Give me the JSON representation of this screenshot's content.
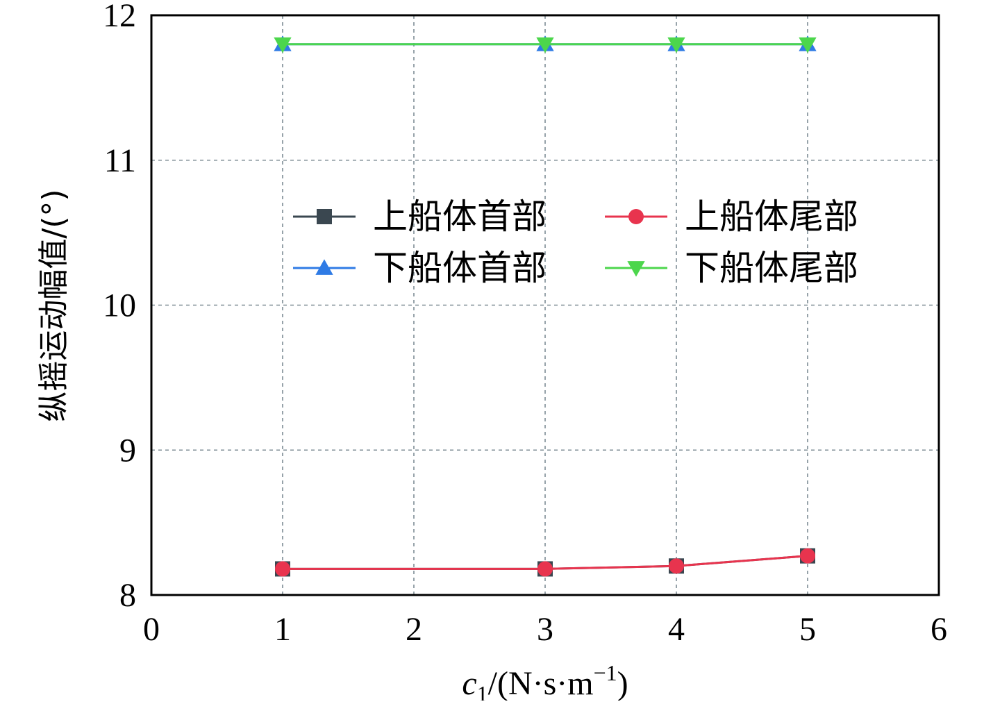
{
  "chart_data": {
    "type": "line",
    "xlabel": {
      "var": "c",
      "sub": "1",
      "unit_pre": "/(N·s·m",
      "sup": "−1",
      "unit_post": ")"
    },
    "ylabel": "纵摇运动幅值/(°)",
    "xlim": [
      0,
      6
    ],
    "ylim": [
      8,
      12
    ],
    "xticks": [
      "0",
      "1",
      "2",
      "3",
      "4",
      "5",
      "6"
    ],
    "yticks": [
      "8",
      "9",
      "10",
      "11",
      "12"
    ],
    "grid": true,
    "legend_position": "upper-center",
    "x": [
      1,
      3,
      4,
      5
    ],
    "series": [
      {
        "name": "上船体首部",
        "color": "#3a4750",
        "marker": "square",
        "values": [
          8.18,
          8.18,
          8.2,
          8.27
        ]
      },
      {
        "name": "上船体尾部",
        "color": "#e8344e",
        "marker": "circle",
        "values": [
          8.18,
          8.18,
          8.2,
          8.27
        ]
      },
      {
        "name": "下船体首部",
        "color": "#2f7be5",
        "marker": "triangle-up",
        "values": [
          11.8,
          11.8,
          11.8,
          11.8
        ]
      },
      {
        "name": "下船体尾部",
        "color": "#4cd64c",
        "marker": "triangle-down",
        "values": [
          11.8,
          11.8,
          11.8,
          11.8
        ]
      }
    ]
  }
}
